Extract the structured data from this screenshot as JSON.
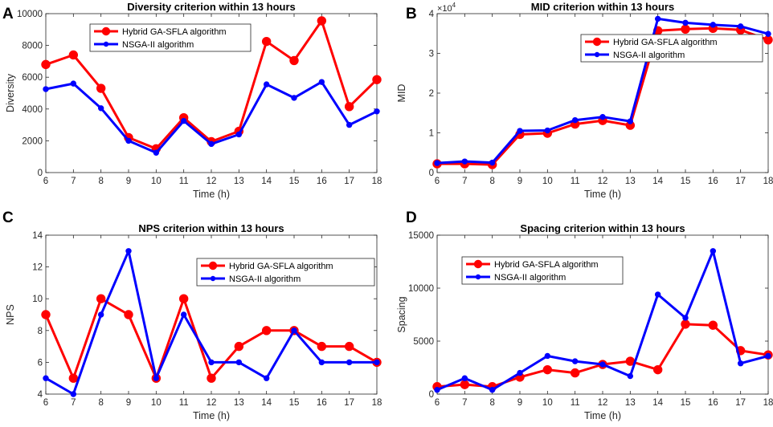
{
  "chart_data": [
    {
      "panel": "A",
      "type": "line",
      "title": "Diversity criterion within 13 hours",
      "xlabel": "Time (h)",
      "ylabel": "Diversity",
      "x": [
        6,
        7,
        8,
        9,
        10,
        11,
        12,
        13,
        14,
        15,
        16,
        17,
        18
      ],
      "xlim": [
        6,
        18
      ],
      "ylim": [
        0,
        10000
      ],
      "yticks": [
        0,
        2000,
        4000,
        6000,
        8000,
        10000
      ],
      "ytick_labels": [
        "0",
        "2000",
        "4000",
        "6000",
        "8000",
        "10000"
      ],
      "y_exponent": "",
      "legend_position": "top-left",
      "series": [
        {
          "name": "Hybrid GA-SFLA algorithm",
          "color": "#ff0000",
          "marker": "large",
          "values": [
            6800,
            7400,
            5300,
            2200,
            1500,
            3450,
            1950,
            2600,
            8250,
            7050,
            9550,
            4150,
            5850
          ]
        },
        {
          "name": "NSGA-II algorithm",
          "color": "#0000ff",
          "marker": "small",
          "values": [
            5250,
            5600,
            4050,
            2000,
            1250,
            3250,
            1800,
            2400,
            5550,
            4700,
            5700,
            3000,
            3850
          ]
        }
      ]
    },
    {
      "panel": "B",
      "type": "line",
      "title": "MID criterion within 13 hours",
      "xlabel": "Time (h)",
      "ylabel": "MID",
      "x": [
        6,
        7,
        8,
        9,
        10,
        11,
        12,
        13,
        14,
        15,
        16,
        17,
        18
      ],
      "xlim": [
        6,
        18
      ],
      "ylim": [
        0,
        40000
      ],
      "yticks": [
        0,
        10000,
        20000,
        30000,
        40000
      ],
      "ytick_labels": [
        "0",
        "1",
        "2",
        "3",
        "4"
      ],
      "y_exponent": "×10",
      "y_exponent_power": "4",
      "legend_position": "top-right",
      "series": [
        {
          "name": "Hybrid GA-SFLA algorithm",
          "color": "#ff0000",
          "marker": "large",
          "values": [
            2200,
            2200,
            2000,
            9600,
            9900,
            12200,
            13100,
            11900,
            35700,
            36100,
            36300,
            35900,
            33400
          ]
        },
        {
          "name": "NSGA-II algorithm",
          "color": "#0000ff",
          "marker": "small",
          "values": [
            2400,
            2800,
            2500,
            10500,
            10600,
            13200,
            14000,
            12900,
            38700,
            37700,
            37200,
            36800,
            34900
          ]
        }
      ]
    },
    {
      "panel": "C",
      "type": "line",
      "title": "NPS criterion within 13 hours",
      "xlabel": "Time (h)",
      "ylabel": "NPS",
      "x": [
        6,
        7,
        8,
        9,
        10,
        11,
        12,
        13,
        14,
        15,
        16,
        17,
        18
      ],
      "xlim": [
        6,
        18
      ],
      "ylim": [
        4,
        14
      ],
      "yticks": [
        4,
        6,
        8,
        10,
        12,
        14
      ],
      "ytick_labels": [
        "4",
        "6",
        "8",
        "10",
        "12",
        "14"
      ],
      "y_exponent": "",
      "legend_position": "top-right",
      "series": [
        {
          "name": "Hybrid GA-SFLA algorithm",
          "color": "#ff0000",
          "marker": "large",
          "values": [
            9,
            5,
            10,
            9,
            5,
            10,
            5,
            7,
            8,
            8,
            7,
            7,
            6
          ]
        },
        {
          "name": "NSGA-II algorithm",
          "color": "#0000ff",
          "marker": "small",
          "values": [
            5,
            4,
            9,
            13,
            5,
            9,
            6,
            6,
            5,
            8,
            6,
            6,
            6
          ]
        }
      ]
    },
    {
      "panel": "D",
      "type": "line",
      "title": "Spacing criterion within 13 hours",
      "xlabel": "Time (h)",
      "ylabel": "Spacing",
      "x": [
        6,
        7,
        8,
        9,
        10,
        11,
        12,
        13,
        14,
        15,
        16,
        17,
        18
      ],
      "xlim": [
        6,
        18
      ],
      "ylim": [
        0,
        15000
      ],
      "yticks": [
        0,
        5000,
        10000,
        15000
      ],
      "ytick_labels": [
        "0",
        "5000",
        "10000",
        "15000"
      ],
      "y_exponent": "",
      "legend_position": "top-left",
      "series": [
        {
          "name": "Hybrid GA-SFLA algorithm",
          "color": "#ff0000",
          "marker": "large",
          "values": [
            700,
            900,
            700,
            1600,
            2300,
            2000,
            2800,
            3100,
            2300,
            6600,
            6500,
            4100,
            3700
          ]
        },
        {
          "name": "NSGA-II algorithm",
          "color": "#0000ff",
          "marker": "small",
          "values": [
            400,
            1500,
            400,
            2000,
            3600,
            3100,
            2800,
            1700,
            9400,
            7200,
            13500,
            2900,
            3600
          ]
        }
      ]
    }
  ]
}
